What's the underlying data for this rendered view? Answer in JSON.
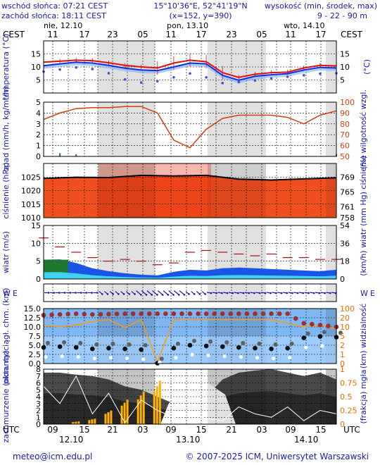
{
  "header": {
    "sunrise": "wschód słońca: 07:21 CEST",
    "sunset": "zachód słońca: 18:11 CEST",
    "coords": "15°10'36\"E, 52°41'19\"N",
    "grid": "(x=152,  y=390)",
    "height_title": "wysokość (min, środek, max)",
    "height_values": "9 - 22 - 90 m"
  },
  "timeline": {
    "timezone": "CEST",
    "bottom_timezone": "UTC",
    "day_labels": [
      "nie, 12.10",
      "pon, 13.10",
      "wto, 14.10"
    ],
    "top_hours": [
      "11",
      "17",
      "23",
      "05",
      "11",
      "17",
      "23",
      "05",
      "11",
      "17"
    ],
    "bottom_hours": [
      "09",
      "15",
      "21",
      "03",
      "09",
      "15",
      "21",
      "03",
      "09",
      "15"
    ],
    "bottom_dates": [
      "12.10",
      "13.10",
      "14.10"
    ]
  },
  "footer": {
    "email": "meteo@icm.edu.pl",
    "copyright": "© 2007-2025 ICM, Uniwersytet Warszawski"
  },
  "chart_data": [
    {
      "type": "line",
      "panel": "temperature",
      "ylabel_left": "temperatura (°C)",
      "ylabel_right": "(°C)",
      "ylim": [
        0,
        20
      ],
      "yticks": [
        5,
        10,
        15
      ],
      "hours": [
        0,
        3,
        6,
        9,
        12,
        15,
        18,
        21,
        24,
        27,
        30,
        33,
        36,
        39,
        42,
        45,
        48,
        51,
        54
      ],
      "series": [
        {
          "values": [
            11.8,
            12.2,
            12.6,
            12.4,
            11.6,
            10.6,
            10.0,
            9.6,
            11.5,
            12.6,
            12.0,
            7.8,
            6.0,
            7.2,
            7.8,
            8.0,
            9.6,
            10.6,
            10.4
          ],
          "color": "#e01010"
        },
        {
          "values": [
            10.5,
            11.2,
            11.8,
            11.5,
            10.6,
            9.5,
            8.8,
            8.6,
            10.0,
            11.5,
            11.2,
            6.8,
            4.9,
            6.4,
            7.0,
            7.4,
            8.8,
            9.8,
            9.6
          ],
          "color": "#1030e0"
        },
        {
          "values": [
            8.2,
            9.0,
            9.8,
            9.2,
            7.6,
            5.2,
            4.0,
            4.5,
            6.0,
            7.5,
            6.0,
            3.8,
            4.2,
            4.8,
            5.6,
            6.2,
            6.8,
            7.4,
            7.6
          ],
          "color": "#4a4adc"
        }
      ]
    },
    {
      "type": "line",
      "panel": "precipitation_humidity",
      "ylabel_left": "opad (mm/h, kg/m²/h)",
      "ylabel_right": "(%) wilgotność wzgl.",
      "ylim_left": [
        0,
        5
      ],
      "yticks_left": [
        0,
        1,
        2,
        3,
        4,
        5
      ],
      "ylim_right": [
        50,
        100
      ],
      "yticks_right": [
        50,
        60,
        70,
        80,
        90,
        100
      ],
      "hours": [
        0,
        3,
        6,
        9,
        12,
        15,
        18,
        21,
        24,
        27,
        30,
        33,
        36,
        39,
        42,
        45,
        48,
        51,
        54
      ],
      "series": [
        {
          "values": [
            84,
            90,
            94,
            95,
            95,
            96,
            96,
            90,
            65,
            58,
            75,
            85,
            88,
            88,
            88,
            86,
            80,
            88,
            92
          ],
          "color": "#d04010"
        },
        {
          "values": [
            0.05,
            0.3,
            0.2,
            0,
            0,
            0,
            0,
            0,
            0,
            0,
            0,
            0,
            0,
            0,
            0,
            0,
            0,
            0,
            0.2
          ],
          "color": "#208020"
        }
      ]
    },
    {
      "type": "area",
      "panel": "pressure",
      "ylabel_left": "ciśnienie (hPa)",
      "ylabel_right": "(mm Hg) ciśnienie",
      "ylim": [
        1010,
        1030
      ],
      "yticks_left": [
        1010,
        1015,
        1020,
        1025
      ],
      "yticks_right": [
        758,
        761,
        765,
        769
      ],
      "hours": [
        0,
        6,
        12,
        18,
        24,
        30,
        36,
        42,
        48,
        54
      ],
      "values": [
        1024.5,
        1024.9,
        1024.8,
        1025.6,
        1025.4,
        1025.6,
        1024.2,
        1023.9,
        1024.3,
        1024.7
      ],
      "color": "#f05020"
    },
    {
      "type": "line",
      "panel": "wind",
      "ylabel_left": "wiatr (m/s)",
      "ylabel_right": "(km/h) wiatr",
      "ylim_left": [
        0,
        15
      ],
      "yticks_left": [
        0,
        5,
        10,
        15
      ],
      "yticks_right": [
        0,
        18,
        36,
        54
      ],
      "hours": [
        0,
        3,
        6,
        9,
        12,
        15,
        18,
        21,
        24,
        27,
        30,
        33,
        36,
        39,
        42,
        45,
        48,
        51,
        54
      ],
      "series": [
        {
          "values": [
            5.4,
            5.5,
            4.5,
            3.0,
            2.2,
            1.6,
            1.2,
            1.0,
            2.0,
            2.6,
            2.4,
            3.0,
            3.2,
            3.0,
            2.8,
            2.6,
            2.4,
            2.2,
            2.6
          ],
          "color": "#1a55e8"
        },
        {
          "values": [
            11.5,
            9.0,
            7.5,
            6.0,
            5.0,
            5.5,
            5.0,
            4.0,
            4.5,
            7.5,
            8.0,
            7.5,
            7.0,
            6.5,
            7.0,
            6.0,
            6.0,
            5.5,
            5.5
          ],
          "color": "#b01010"
        }
      ]
    },
    {
      "type": "line",
      "panel": "wind_direction",
      "label_left": "W",
      "label_right": "E"
    },
    {
      "type": "scatter",
      "panel": "cloud_visibility",
      "ylabel_left": "pion. rozciągł. chm. (km)",
      "ylabel_right": "(km) widzialność",
      "ylim_left": [
        0,
        15
      ],
      "yticks_left": [
        0,
        2.5,
        5,
        7.5,
        10,
        12.5,
        15
      ],
      "yticks_right_labels": [
        "0",
        "1",
        "2",
        "5",
        "10",
        "20",
        "100"
      ],
      "hours": [
        0,
        3,
        6,
        9,
        12,
        15,
        18,
        21,
        24,
        27,
        30,
        33,
        36,
        39,
        42,
        45,
        48,
        51,
        54
      ],
      "series": [
        {
          "values": [
            10.5,
            10,
            10.5,
            11.5,
            12,
            9.8,
            12,
            0.5,
            12,
            12,
            12,
            12,
            12,
            12,
            12,
            11,
            10,
            10.5,
            9.5
          ],
          "color": "#ff9a10"
        },
        {
          "values": [
            13.2,
            13.4,
            13.6,
            13.4,
            13.5,
            13.6,
            13.6,
            13.6,
            13.6,
            13.6,
            13.6,
            13.6,
            13.6,
            13.6,
            13.6,
            13.6,
            11,
            10.5,
            10
          ],
          "color": "#a03030"
        },
        {
          "values": [
            4.4,
            4.6,
            4.4,
            4.0,
            4.2,
            4.0,
            3.8,
            0.1,
            4.2,
            5.0,
            4.8,
            4.6,
            4.4,
            4.2,
            4.0,
            4.2,
            7.0,
            7.4,
            7.2
          ],
          "color": "#101010"
        }
      ]
    },
    {
      "type": "bar",
      "panel": "cloud_cover_fog",
      "ylabel_left": "zachmurzenie (oktanty)",
      "ylabel_right": "(frakcja) mgła",
      "ylim_left": [
        0,
        8
      ],
      "yticks_left": [
        0,
        1,
        2,
        3,
        4,
        5,
        6,
        7,
        8
      ],
      "ylim_right": [
        0,
        1
      ],
      "yticks_right": [
        "0",
        "0.25",
        "0.5",
        "0.75",
        "1"
      ],
      "hours": [
        0,
        3,
        6,
        9,
        12,
        15,
        18,
        21,
        24,
        27,
        30,
        33,
        36,
        39,
        42,
        45,
        48,
        51,
        54
      ],
      "series": [
        {
          "values": [
            7.5,
            7.5,
            7.2,
            7.0,
            6.5,
            5.5,
            5.0,
            4.0,
            3.0,
            2.5,
            4.0,
            6.5,
            7.5,
            7.8,
            8.0,
            7.5,
            7.0,
            7.5,
            6.5
          ],
          "color": "#3a3a3a"
        },
        {
          "values": [
            5.5,
            3.0,
            7.0,
            1.5,
            4.5,
            0.2,
            3.5,
            2.0,
            1.0,
            1.5,
            0.8,
            0.5,
            2.5,
            1.5,
            1.0,
            2.5,
            0.5,
            2.0,
            1.5
          ],
          "color": "#ffffff"
        },
        {
          "values": [
            0,
            0,
            0.05,
            0.1,
            0.25,
            0.45,
            0.6,
            0.8,
            0,
            0,
            0,
            0,
            0,
            0,
            0,
            0,
            0,
            0,
            0
          ],
          "color": "#ffb000"
        }
      ]
    }
  ]
}
